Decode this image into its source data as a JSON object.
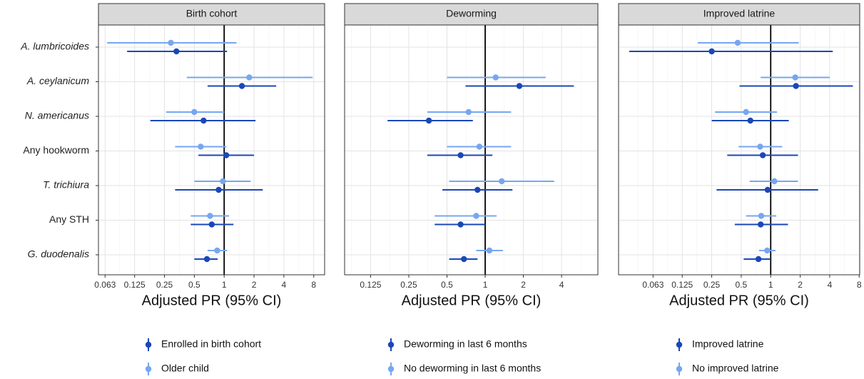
{
  "chart_data": [
    {
      "type": "forest",
      "title": "Birth cohort",
      "xlabel": "Adjusted PR (95% CI)",
      "categories": [
        "A. lumbricoides",
        "A. ceylanicum",
        "N. americanus",
        "Any hookworm",
        "T. trichiura",
        "Any STH",
        "G. duodenalis"
      ],
      "italic_categories": [
        true,
        true,
        true,
        false,
        true,
        false,
        true
      ],
      "x_log": true,
      "grid": true,
      "ref_line": 1,
      "xlim": [
        0.054,
        10.3
      ],
      "xticks": [
        0.063,
        0.125,
        0.25,
        0.5,
        1,
        2,
        4,
        8
      ],
      "series": [
        {
          "name": "Enrolled in birth cohort",
          "color": "#1a47b8",
          "values": [
            0.33,
            1.51,
            0.62,
            1.05,
            0.88,
            0.75,
            0.67
          ],
          "lower": [
            0.105,
            0.68,
            0.18,
            0.55,
            0.32,
            0.46,
            0.5
          ],
          "upper": [
            1.07,
            3.35,
            2.07,
            2.0,
            2.45,
            1.24,
            0.86
          ]
        },
        {
          "name": "Older child",
          "color": "#77a6f0",
          "values": [
            0.29,
            1.79,
            0.5,
            0.58,
            0.97,
            0.72,
            0.85
          ],
          "lower": [
            0.066,
            0.42,
            0.26,
            0.32,
            0.5,
            0.46,
            0.68
          ],
          "upper": [
            1.33,
            7.8,
            1.0,
            1.05,
            1.85,
            1.12,
            1.07
          ]
        }
      ]
    },
    {
      "type": "forest",
      "title": "Deworming",
      "xlabel": "Adjusted PR (95% CI)",
      "x_log": true,
      "grid": true,
      "ref_line": 1,
      "xlim": [
        0.078,
        7.73
      ],
      "xticks": [
        0.125,
        0.25,
        0.5,
        1,
        2,
        4
      ],
      "series": [
        {
          "name": "Deworming in last 6 months",
          "color": "#1a47b8",
          "values": [
            null,
            1.86,
            0.36,
            0.64,
            0.87,
            0.64,
            0.68
          ],
          "lower": [
            null,
            0.7,
            0.17,
            0.35,
            0.46,
            0.4,
            0.52
          ],
          "upper": [
            null,
            5.0,
            0.8,
            1.14,
            1.64,
            1.0,
            0.87
          ]
        },
        {
          "name": "No deworming in last 6 months",
          "color": "#77a6f0",
          "values": [
            null,
            1.21,
            0.74,
            0.9,
            1.35,
            0.85,
            1.08
          ],
          "lower": [
            null,
            0.5,
            0.35,
            0.5,
            0.52,
            0.4,
            0.85
          ],
          "upper": [
            null,
            3.0,
            1.6,
            1.6,
            3.5,
            1.23,
            1.38
          ]
        }
      ]
    },
    {
      "type": "forest",
      "title": "Improved latrine",
      "xlabel": "Adjusted PR (95% CI)",
      "x_log": true,
      "grid": true,
      "ref_line": 1,
      "xlim": [
        0.028,
        8.1
      ],
      "xticks": [
        0.063,
        0.125,
        0.25,
        0.5,
        1,
        2,
        4,
        8
      ],
      "series": [
        {
          "name": "Improved latrine",
          "color": "#1a47b8",
          "values": [
            0.25,
            1.81,
            0.62,
            0.83,
            0.93,
            0.79,
            0.75
          ],
          "lower": [
            0.036,
            0.48,
            0.25,
            0.36,
            0.28,
            0.43,
            0.53
          ],
          "upper": [
            4.3,
            6.9,
            1.53,
            1.9,
            3.05,
            1.5,
            0.98
          ]
        },
        {
          "name": "No improved latrine",
          "color": "#77a6f0",
          "values": [
            0.46,
            1.78,
            0.56,
            0.78,
            1.09,
            0.8,
            0.92
          ],
          "lower": [
            0.18,
            0.79,
            0.27,
            0.47,
            0.61,
            0.56,
            0.76
          ],
          "upper": [
            1.93,
            4.0,
            1.16,
            1.31,
            1.9,
            1.14,
            1.12
          ]
        }
      ]
    }
  ]
}
